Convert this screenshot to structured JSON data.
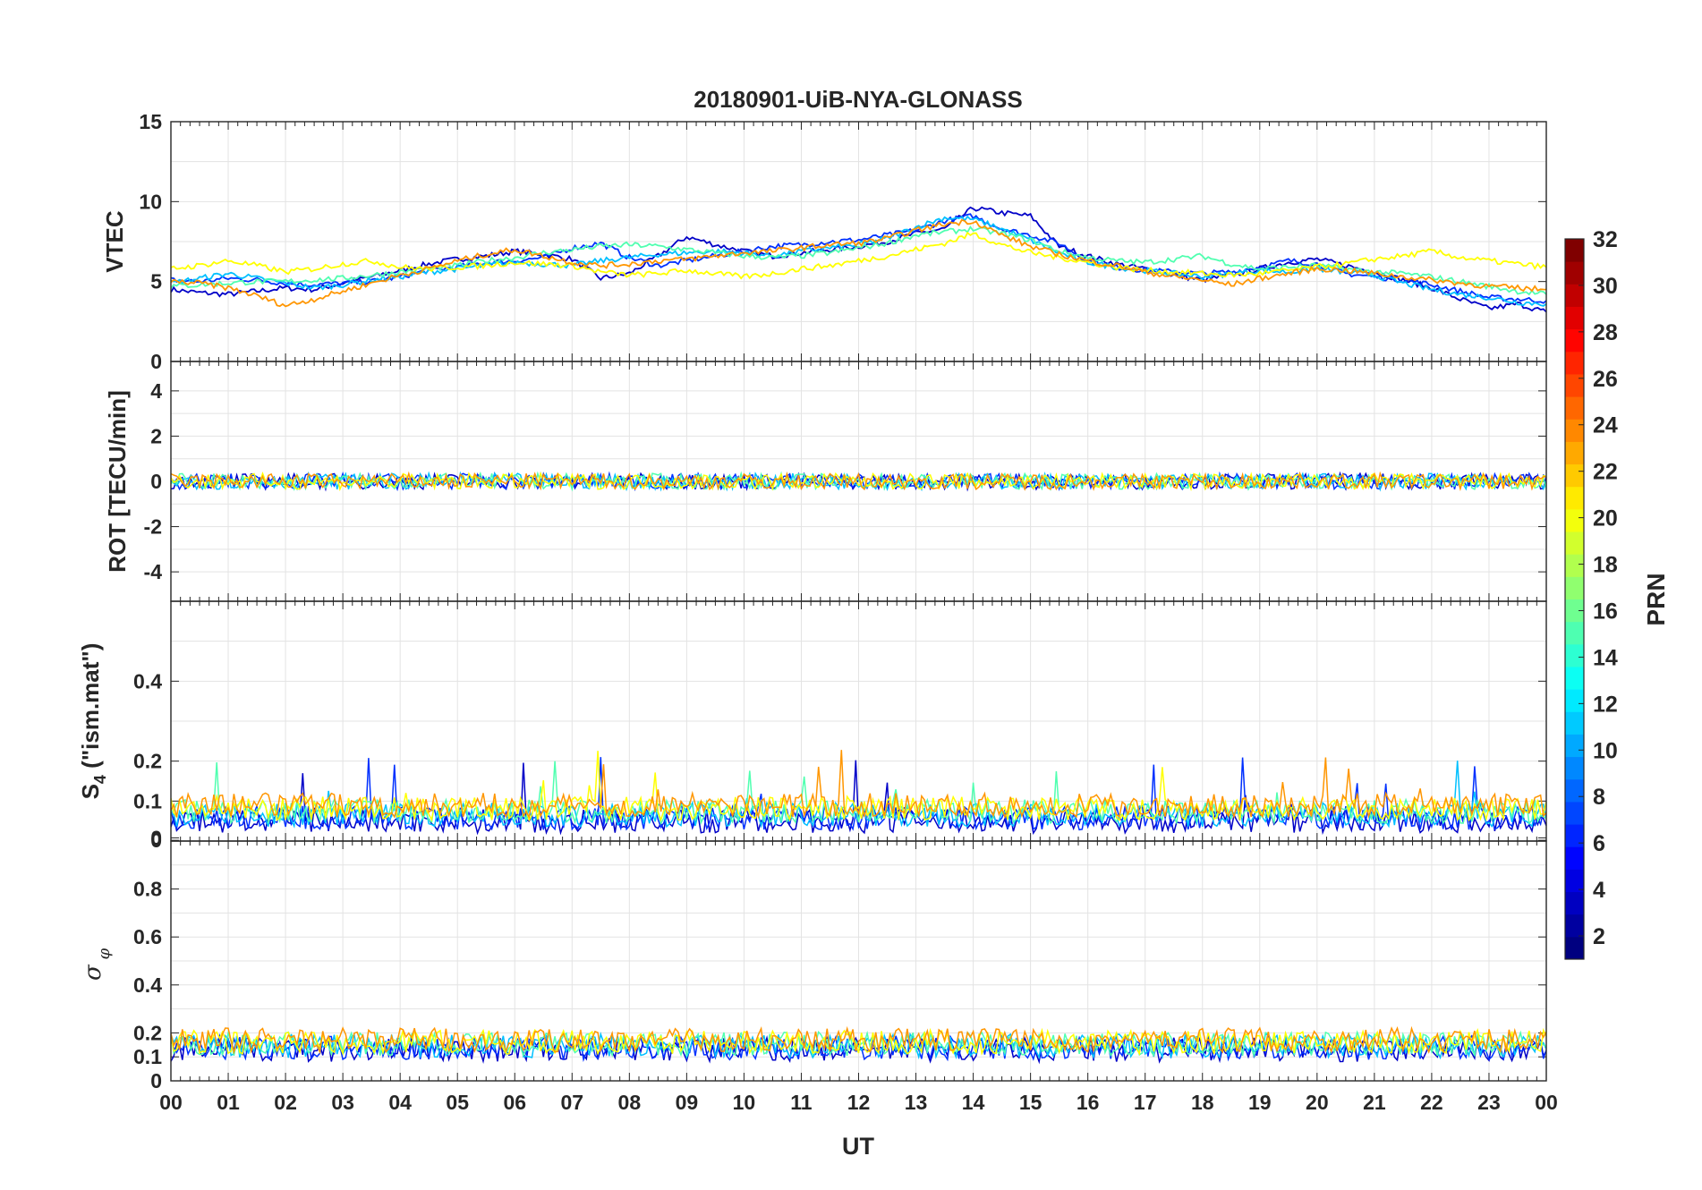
{
  "chart_data": {
    "type": "line",
    "title": "20180901-UiB-NYA-GLONASS",
    "xlabel": "UT",
    "x_tick_labels": [
      "00",
      "01",
      "02",
      "03",
      "04",
      "05",
      "06",
      "07",
      "08",
      "09",
      "10",
      "11",
      "12",
      "13",
      "14",
      "15",
      "16",
      "17",
      "18",
      "19",
      "20",
      "21",
      "22",
      "23",
      "00"
    ],
    "xlim_hours": [
      0,
      24
    ],
    "grid": true,
    "colorbar": {
      "label": "PRN",
      "range": [
        1,
        32
      ],
      "colormap": "jet",
      "tick_labels": [
        "2",
        "4",
        "6",
        "8",
        "10",
        "12",
        "14",
        "16",
        "18",
        "20",
        "22",
        "24",
        "26",
        "28",
        "30",
        "32"
      ]
    },
    "panels": [
      {
        "ylabel": "VTEC",
        "ylim": [
          0,
          15
        ],
        "y_tick_labels": [
          "0",
          "5",
          "10",
          "15"
        ],
        "series": [
          {
            "prn": 3,
            "color": "#0000c8",
            "x": [
              0,
              0.5,
              1,
              1.5,
              2,
              2.5,
              3,
              3.5,
              4,
              4.5,
              5,
              5.5,
              6,
              6.5,
              7,
              7.5,
              8,
              8.5,
              9,
              9.5,
              10,
              10.5,
              11,
              11.5,
              12,
              12.5,
              13,
              13.5,
              14,
              14.5,
              15,
              15.5,
              16,
              16.5,
              17,
              17.5,
              18,
              18.5,
              19,
              19.5,
              20,
              20.5,
              21,
              21.5,
              22,
              22.5,
              23,
              23.5,
              24
            ],
            "y": [
              4.5,
              4.3,
              4.2,
              4.4,
              4.6,
              4.5,
              4.9,
              5.3,
              5.7,
              6.1,
              6.4,
              6.6,
              6.9,
              6.7,
              6.4,
              5.2,
              5.5,
              6.6,
              7.8,
              7.3,
              6.9,
              6.6,
              6.8,
              7.0,
              7.2,
              7.5,
              8.0,
              8.3,
              9.6,
              9.3,
              9.1,
              7.2,
              6.6,
              6.1,
              5.8,
              5.4,
              5.1,
              5.4,
              5.8,
              6.2,
              6.4,
              6.0,
              5.6,
              5.1,
              4.6,
              3.9,
              3.3,
              3.6,
              3.1
            ]
          },
          {
            "prn": 6,
            "color": "#0030ff",
            "x": [
              0,
              0.5,
              1,
              1.5,
              2,
              2.5,
              3,
              3.5,
              4,
              4.5,
              5,
              5.5,
              6,
              6.5,
              7,
              7.5,
              8,
              8.5,
              9,
              9.5,
              10,
              10.5,
              11,
              11.5,
              12,
              12.5,
              13,
              13.5,
              14,
              14.5,
              15,
              15.5,
              16,
              16.5,
              17,
              17.5,
              18,
              18.5,
              19,
              19.5,
              20,
              20.5,
              21,
              21.5,
              22,
              22.5,
              23,
              23.5,
              24
            ],
            "y": [
              5.1,
              5.0,
              5.2,
              5.1,
              4.9,
              4.8,
              4.9,
              5.0,
              5.3,
              5.7,
              5.9,
              6.2,
              6.3,
              6.5,
              7.1,
              7.4,
              6.5,
              6.0,
              6.3,
              6.6,
              6.9,
              7.2,
              7.3,
              7.5,
              7.6,
              7.9,
              8.2,
              8.8,
              9.1,
              8.3,
              7.9,
              7.4,
              6.3,
              5.9,
              5.7,
              5.6,
              5.5,
              5.6,
              5.9,
              6.3,
              6.1,
              5.5,
              5.3,
              5.1,
              4.8,
              4.4,
              4.0,
              3.9,
              3.8
            ]
          },
          {
            "prn": 12,
            "color": "#00c0ff",
            "x": [
              0,
              0.5,
              1,
              1.5,
              2,
              2.5,
              3,
              3.5,
              4,
              4.5,
              5,
              5.5,
              6,
              6.5,
              7,
              7.5,
              8,
              8.5,
              9,
              9.5,
              10,
              10.5,
              11,
              11.5,
              12,
              12.5,
              13,
              13.5,
              14,
              14.5,
              15,
              15.5,
              16,
              16.5,
              17,
              17.5,
              18,
              18.5,
              19,
              19.5,
              20,
              20.5,
              21,
              21.5,
              22,
              22.5,
              23,
              23.5,
              24
            ],
            "y": [
              4.9,
              5.2,
              5.5,
              5.2,
              4.9,
              4.6,
              4.8,
              5.1,
              5.3,
              5.6,
              5.8,
              6.0,
              6.2,
              6.1,
              6.0,
              6.3,
              6.5,
              6.7,
              6.8,
              6.9,
              6.8,
              6.6,
              6.9,
              7.1,
              7.3,
              7.7,
              8.4,
              9.0,
              8.9,
              8.3,
              7.6,
              6.8,
              6.2,
              5.9,
              5.7,
              5.5,
              5.3,
              5.5,
              5.7,
              5.6,
              5.8,
              5.6,
              5.4,
              4.9,
              4.5,
              4.2,
              4.0,
              3.7,
              3.6
            ]
          },
          {
            "prn": 16,
            "color": "#50ffb0",
            "x": [
              0,
              0.5,
              1,
              1.5,
              2,
              2.5,
              3,
              3.5,
              4,
              4.5,
              5,
              5.5,
              6,
              6.5,
              7,
              7.5,
              8,
              8.5,
              9,
              9.5,
              10,
              10.5,
              11,
              11.5,
              12,
              12.5,
              13,
              13.5,
              14,
              14.5,
              15,
              15.5,
              16,
              16.5,
              17,
              17.5,
              18,
              18.5,
              19,
              19.5,
              20,
              20.5,
              21,
              21.5,
              22,
              22.5,
              23,
              23.5,
              24
            ],
            "y": [
              4.7,
              4.8,
              4.9,
              5.0,
              5.0,
              5.1,
              5.2,
              5.4,
              5.6,
              5.8,
              6.0,
              6.3,
              6.5,
              6.8,
              7.0,
              7.2,
              7.3,
              7.2,
              7.0,
              6.8,
              6.6,
              6.5,
              6.6,
              6.8,
              7.1,
              7.4,
              7.9,
              8.1,
              8.3,
              8.0,
              7.6,
              6.9,
              6.5,
              6.3,
              6.2,
              6.4,
              6.6,
              6.1,
              5.8,
              5.9,
              6.0,
              5.8,
              5.6,
              5.5,
              5.3,
              5.0,
              4.7,
              4.4,
              4.2
            ]
          },
          {
            "prn": 20,
            "color": "#ffff00",
            "x": [
              0,
              0.5,
              1,
              1.5,
              2,
              2.5,
              3,
              3.5,
              4,
              4.5,
              5,
              5.5,
              6,
              6.5,
              7,
              7.5,
              8,
              8.5,
              9,
              9.5,
              10,
              10.5,
              11,
              11.5,
              12,
              12.5,
              13,
              13.5,
              14,
              14.5,
              15,
              15.5,
              16,
              16.5,
              17,
              17.5,
              18,
              18.5,
              19,
              19.5,
              20,
              20.5,
              21,
              21.5,
              22,
              22.5,
              23,
              23.5,
              24
            ],
            "y": [
              5.8,
              6.0,
              6.3,
              6.0,
              5.6,
              5.8,
              6.1,
              6.3,
              5.9,
              5.8,
              5.9,
              6.0,
              6.2,
              6.1,
              6.0,
              5.6,
              5.4,
              5.5,
              5.7,
              5.5,
              5.3,
              5.5,
              5.8,
              6.0,
              6.3,
              6.6,
              7.0,
              7.4,
              8.0,
              7.3,
              6.8,
              6.5,
              6.2,
              5.9,
              5.7,
              5.6,
              5.5,
              5.4,
              5.5,
              5.7,
              5.9,
              6.1,
              6.4,
              6.6,
              6.9,
              6.5,
              6.3,
              6.1,
              5.9
            ]
          },
          {
            "prn": 23,
            "color": "#ff9600",
            "x": [
              0,
              0.5,
              1,
              1.5,
              2,
              2.5,
              3,
              3.5,
              4,
              4.5,
              5,
              5.5,
              6,
              6.5,
              7,
              7.5,
              8,
              8.5,
              9,
              9.5,
              10,
              10.5,
              11,
              11.5,
              12,
              12.5,
              13,
              13.5,
              14,
              14.5,
              15,
              15.5,
              16,
              16.5,
              17,
              17.5,
              18,
              18.5,
              19,
              19.5,
              20,
              20.5,
              21,
              21.5,
              22,
              22.5,
              23,
              23.5,
              24
            ],
            "y": [
              5.0,
              4.9,
              4.6,
              4.1,
              3.5,
              3.9,
              4.4,
              4.9,
              5.4,
              5.8,
              6.3,
              6.7,
              7.0,
              6.6,
              6.2,
              6.0,
              6.1,
              6.3,
              6.4,
              6.6,
              6.8,
              6.9,
              7.1,
              7.3,
              7.4,
              7.7,
              8.2,
              8.6,
              8.8,
              7.9,
              7.2,
              6.7,
              6.3,
              6.0,
              5.6,
              5.3,
              5.1,
              4.8,
              5.2,
              5.5,
              5.8,
              5.7,
              5.5,
              5.3,
              5.1,
              4.9,
              4.7,
              4.6,
              4.5
            ]
          }
        ]
      },
      {
        "ylabel": "ROT [TECU/min]",
        "ylim": [
          -5.3,
          5.3
        ],
        "y_tick_labels": [
          "-4",
          "-2",
          "0",
          "2",
          "4"
        ]
      },
      {
        "ylabel": "S4 (\"ism.mat\")",
        "ylim": [
          0,
          0.6
        ],
        "y_tick_labels": [
          "0",
          "0",
          "0.1",
          "0.2",
          "0.4"
        ]
      },
      {
        "ylabel": "σφ",
        "ylim": [
          0,
          1
        ],
        "y_tick_labels": [
          "0",
          "0.1",
          "0.2",
          "0.4",
          "0.6",
          "0.8"
        ]
      }
    ]
  }
}
